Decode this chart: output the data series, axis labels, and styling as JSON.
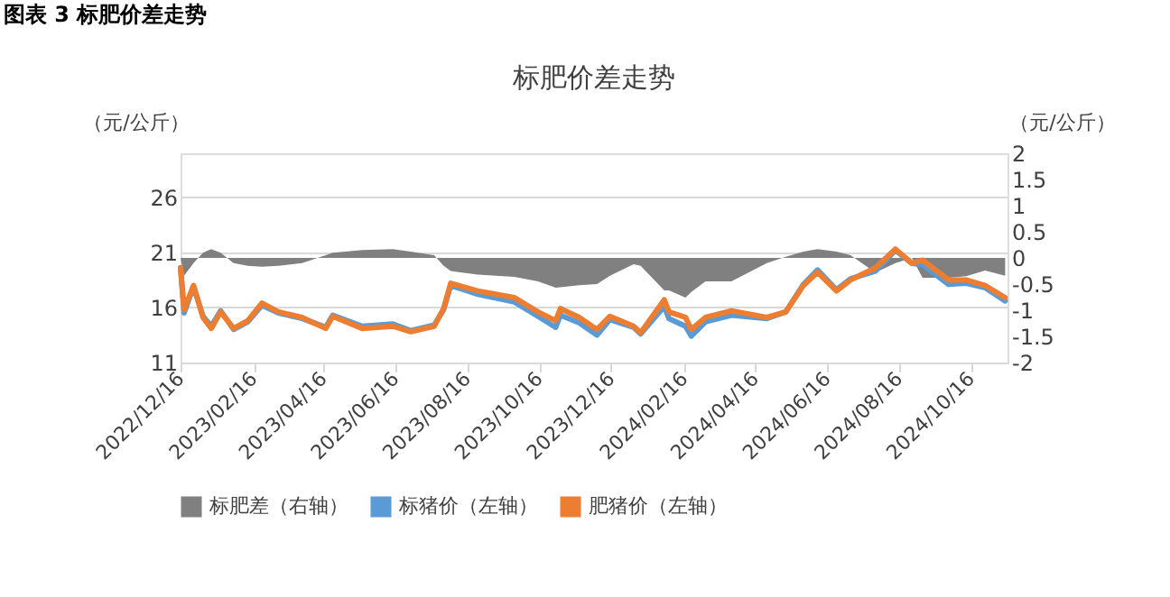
{
  "chart_data": {
    "type": "line",
    "title": "标肥价差走势",
    "annotations": [
      "图表 3 标肥价差走势"
    ],
    "ylabel": "（元/公斤）",
    "y2label": "（元/公斤）",
    "x": [
      "2022-12-16",
      "2022-12-19",
      "2022-12-27",
      "2023-01-04",
      "2023-01-11",
      "2023-01-19",
      "2023-01-30",
      "2023-02-11",
      "2023-02-23",
      "2023-03-09",
      "2023-03-29",
      "2023-04-18",
      "2023-04-24",
      "2023-05-19",
      "2023-06-14",
      "2023-06-29",
      "2023-07-19",
      "2023-07-27",
      "2023-08-02",
      "2023-08-25",
      "2023-09-25",
      "2023-10-15",
      "2023-10-30",
      "2023-11-03",
      "2023-11-19",
      "2023-12-04",
      "2023-12-15",
      "2024-01-04",
      "2024-01-10",
      "2024-01-30",
      "2024-02-03",
      "2024-02-17",
      "2024-02-22",
      "2024-03-05",
      "2024-03-27",
      "2024-04-26",
      "2024-05-12",
      "2024-05-27",
      "2024-06-08",
      "2024-06-24",
      "2024-07-06",
      "2024-07-27",
      "2024-08-13",
      "2024-08-27",
      "2024-09-05",
      "2024-09-27",
      "2024-10-12",
      "2024-10-28",
      "2024-11-14"
    ],
    "series": [
      {
        "name": "标肥差（右轴）",
        "type": "area",
        "axis": "y2",
        "color": "#808080",
        "values": [
          0,
          -0.34,
          -0.1,
          0.1,
          0.17,
          0.1,
          -0.1,
          -0.15,
          -0.17,
          -0.15,
          -0.1,
          0.05,
          0.1,
          0.15,
          0.17,
          0.12,
          0.05,
          -0.15,
          -0.25,
          -0.32,
          -0.36,
          -0.45,
          -0.57,
          -0.56,
          -0.52,
          -0.5,
          -0.34,
          -0.12,
          -0.15,
          -0.62,
          -0.62,
          -0.76,
          -0.65,
          -0.45,
          -0.45,
          -0.1,
          0.02,
          0.12,
          0.17,
          0.12,
          0.05,
          -0.28,
          -0.1,
          0.0,
          -0.38,
          -0.38,
          -0.35,
          -0.24,
          -0.34
        ]
      },
      {
        "name": "标猪价（左轴）",
        "color": "#5b9bd5",
        "values": [
          19.6,
          15.5,
          17.9,
          15.2,
          14.3,
          15.7,
          14.0,
          14.7,
          16.2,
          15.5,
          15.0,
          14.2,
          15.3,
          14.3,
          14.5,
          13.9,
          14.4,
          15.8,
          18.0,
          17.2,
          16.5,
          15.2,
          14.2,
          15.3,
          14.6,
          13.5,
          14.9,
          14.2,
          13.6,
          16.1,
          15.0,
          14.3,
          13.4,
          14.7,
          15.3,
          15.0,
          15.6,
          18.1,
          19.4,
          17.6,
          18.6,
          19.3,
          21.2,
          20.0,
          19.9,
          18.1,
          18.2,
          17.8,
          16.6
        ]
      },
      {
        "name": "肥猪价（左轴）",
        "color": "#ed7d31",
        "values": [
          19.6,
          15.8,
          18.0,
          15.1,
          14.1,
          15.6,
          14.1,
          14.8,
          16.4,
          15.6,
          15.1,
          14.1,
          15.2,
          14.1,
          14.3,
          13.8,
          14.3,
          15.9,
          18.2,
          17.5,
          16.9,
          15.6,
          14.8,
          15.9,
          15.1,
          14.0,
          15.2,
          14.3,
          13.7,
          16.7,
          15.6,
          15.1,
          14.0,
          15.1,
          15.7,
          15.1,
          15.6,
          18.0,
          19.2,
          17.5,
          18.5,
          19.6,
          21.3,
          20.0,
          20.3,
          18.5,
          18.5,
          18.0,
          16.9
        ]
      }
    ],
    "xlim": [
      "2022-12-16",
      "2024-11-16"
    ],
    "xticks": [
      {
        "value": "2022-12-16",
        "label": "2022/12/16"
      },
      {
        "value": "2023-02-16",
        "label": "2023/02/16"
      },
      {
        "value": "2023-04-16",
        "label": "2023/04/16"
      },
      {
        "value": "2023-06-16",
        "label": "2023/06/16"
      },
      {
        "value": "2023-08-16",
        "label": "2023/08/16"
      },
      {
        "value": "2023-10-16",
        "label": "2023/10/16"
      },
      {
        "value": "2023-12-16",
        "label": "2023/12/16"
      },
      {
        "value": "2024-02-16",
        "label": "2024/02/16"
      },
      {
        "value": "2024-04-16",
        "label": "2024/04/16"
      },
      {
        "value": "2024-06-16",
        "label": "2024/06/16"
      },
      {
        "value": "2024-08-16",
        "label": "2024/08/16"
      },
      {
        "value": "2024-10-16",
        "label": "2024/10/16"
      }
    ],
    "ylim": [
      11,
      30
    ],
    "yticks": [
      11,
      16,
      21,
      26
    ],
    "y2lim": [
      -2,
      2
    ],
    "y2ticks": [
      -2,
      -1.5,
      -1,
      -0.5,
      0,
      0.5,
      1,
      1.5,
      2
    ],
    "grid": "y",
    "legend": "bottom",
    "line_style": "solid",
    "marker": "none"
  }
}
